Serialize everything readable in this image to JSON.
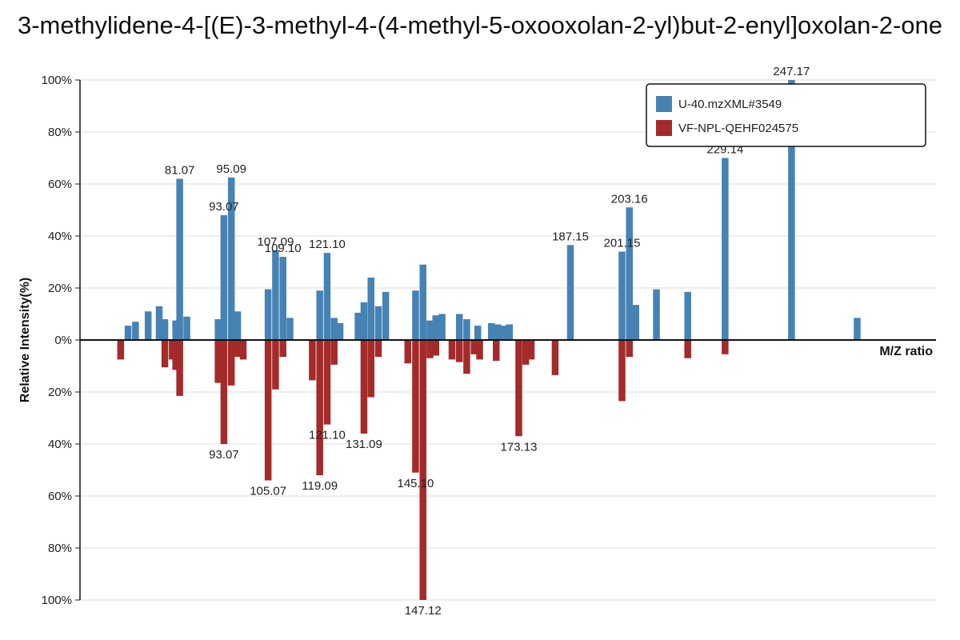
{
  "chart_data": {
    "type": "bar",
    "title": "3-methylidene-4-[(E)-3-methyl-4-(4-methyl-5-oxooxolan-2-yl)but-2-enyl]oxolan-2-one",
    "xlabel": "M/Z ratio",
    "ylabel": "Relative Intensity(%)",
    "ylim": [
      -100,
      100
    ],
    "y_ticks": [
      "100%",
      "80%",
      "60%",
      "40%",
      "20%",
      "0%",
      "20%",
      "40%",
      "60%",
      "80%",
      "100%"
    ],
    "grid": true,
    "legend_position": "top-right",
    "series": [
      {
        "name": "U-40.mzXML#3549",
        "color": "#4682b4",
        "direction": "up",
        "peaks": [
          {
            "mz": 67.05,
            "intensity": 5.5
          },
          {
            "mz": 69.07,
            "intensity": 7
          },
          {
            "mz": 72.5,
            "intensity": 11
          },
          {
            "mz": 75.5,
            "intensity": 13
          },
          {
            "mz": 77.04,
            "intensity": 8
          },
          {
            "mz": 80.0,
            "intensity": 7.5
          },
          {
            "mz": 81.07,
            "intensity": 62,
            "label": "81.07"
          },
          {
            "mz": 83.0,
            "intensity": 9
          },
          {
            "mz": 91.5,
            "intensity": 8
          },
          {
            "mz": 93.07,
            "intensity": 48,
            "label": "93.07"
          },
          {
            "mz": 95.09,
            "intensity": 62.5,
            "label": "95.09"
          },
          {
            "mz": 96.8,
            "intensity": 11
          },
          {
            "mz": 105.07,
            "intensity": 19.5
          },
          {
            "mz": 107.09,
            "intensity": 34.5,
            "label": "107.09"
          },
          {
            "mz": 109.1,
            "intensity": 32,
            "label": "109.10"
          },
          {
            "mz": 111.0,
            "intensity": 8.5
          },
          {
            "mz": 119.09,
            "intensity": 19
          },
          {
            "mz": 121.1,
            "intensity": 33.5,
            "label": "121.10"
          },
          {
            "mz": 123.0,
            "intensity": 8.5
          },
          {
            "mz": 124.6,
            "intensity": 6.5
          },
          {
            "mz": 129.5,
            "intensity": 10.5
          },
          {
            "mz": 131.09,
            "intensity": 14.5
          },
          {
            "mz": 133.0,
            "intensity": 24
          },
          {
            "mz": 135.0,
            "intensity": 13
          },
          {
            "mz": 137.0,
            "intensity": 18.5
          },
          {
            "mz": 145.1,
            "intensity": 19
          },
          {
            "mz": 147.12,
            "intensity": 29
          },
          {
            "mz": 149.0,
            "intensity": 7.5
          },
          {
            "mz": 150.6,
            "intensity": 9.5
          },
          {
            "mz": 152.3,
            "intensity": 10
          },
          {
            "mz": 157.0,
            "intensity": 10
          },
          {
            "mz": 159.0,
            "intensity": 8
          },
          {
            "mz": 162.0,
            "intensity": 5.5
          },
          {
            "mz": 165.7,
            "intensity": 6.5
          },
          {
            "mz": 167.4,
            "intensity": 6
          },
          {
            "mz": 169.0,
            "intensity": 5.5
          },
          {
            "mz": 170.6,
            "intensity": 6
          },
          {
            "mz": 187.15,
            "intensity": 36.5,
            "label": "187.15"
          },
          {
            "mz": 201.15,
            "intensity": 34,
            "label": "201.15"
          },
          {
            "mz": 203.16,
            "intensity": 51,
            "label": "203.16"
          },
          {
            "mz": 204.9,
            "intensity": 13.5
          },
          {
            "mz": 210.5,
            "intensity": 19.5
          },
          {
            "mz": 219.0,
            "intensity": 18.5
          },
          {
            "mz": 229.14,
            "intensity": 70,
            "label": "229.14"
          },
          {
            "mz": 247.17,
            "intensity": 100,
            "label": "247.17"
          },
          {
            "mz": 265.0,
            "intensity": 8.5
          }
        ]
      },
      {
        "name": "VF-NPL-QEHF024575",
        "color": "#a52a2a",
        "direction": "down",
        "peaks": [
          {
            "mz": 65.04,
            "intensity": 7.5
          },
          {
            "mz": 77.04,
            "intensity": 10.5
          },
          {
            "mz": 79.05,
            "intensity": 7.5
          },
          {
            "mz": 80.0,
            "intensity": 11.5
          },
          {
            "mz": 81.07,
            "intensity": 21.5
          },
          {
            "mz": 91.5,
            "intensity": 16.5
          },
          {
            "mz": 93.07,
            "intensity": 40,
            "label": "93.07"
          },
          {
            "mz": 95.09,
            "intensity": 17.5
          },
          {
            "mz": 96.8,
            "intensity": 6.5
          },
          {
            "mz": 98.3,
            "intensity": 7.5
          },
          {
            "mz": 105.07,
            "intensity": 54,
            "label": "105.07"
          },
          {
            "mz": 107.09,
            "intensity": 19
          },
          {
            "mz": 109.1,
            "intensity": 6.5
          },
          {
            "mz": 117.07,
            "intensity": 15.5
          },
          {
            "mz": 119.09,
            "intensity": 52,
            "label": "119.09"
          },
          {
            "mz": 121.1,
            "intensity": 32.5,
            "label": "121.10"
          },
          {
            "mz": 123.0,
            "intensity": 9.5
          },
          {
            "mz": 131.09,
            "intensity": 36,
            "label": "131.09"
          },
          {
            "mz": 133.0,
            "intensity": 22
          },
          {
            "mz": 135.0,
            "intensity": 6.5
          },
          {
            "mz": 143.0,
            "intensity": 9
          },
          {
            "mz": 145.1,
            "intensity": 51,
            "label": "145.10"
          },
          {
            "mz": 147.12,
            "intensity": 100,
            "label": "147.12"
          },
          {
            "mz": 149.0,
            "intensity": 7
          },
          {
            "mz": 150.6,
            "intensity": 6
          },
          {
            "mz": 155.0,
            "intensity": 7.5
          },
          {
            "mz": 157.0,
            "intensity": 8.5
          },
          {
            "mz": 159.0,
            "intensity": 13
          },
          {
            "mz": 161.0,
            "intensity": 5.5
          },
          {
            "mz": 162.5,
            "intensity": 7.5
          },
          {
            "mz": 167.0,
            "intensity": 8
          },
          {
            "mz": 173.13,
            "intensity": 37,
            "label": "173.13"
          },
          {
            "mz": 175.0,
            "intensity": 9.5
          },
          {
            "mz": 176.5,
            "intensity": 7.5
          },
          {
            "mz": 183.0,
            "intensity": 13.5
          },
          {
            "mz": 201.15,
            "intensity": 23.5
          },
          {
            "mz": 203.16,
            "intensity": 6.5
          },
          {
            "mz": 219.0,
            "intensity": 7
          },
          {
            "mz": 229.14,
            "intensity": 5.5
          }
        ]
      }
    ]
  }
}
